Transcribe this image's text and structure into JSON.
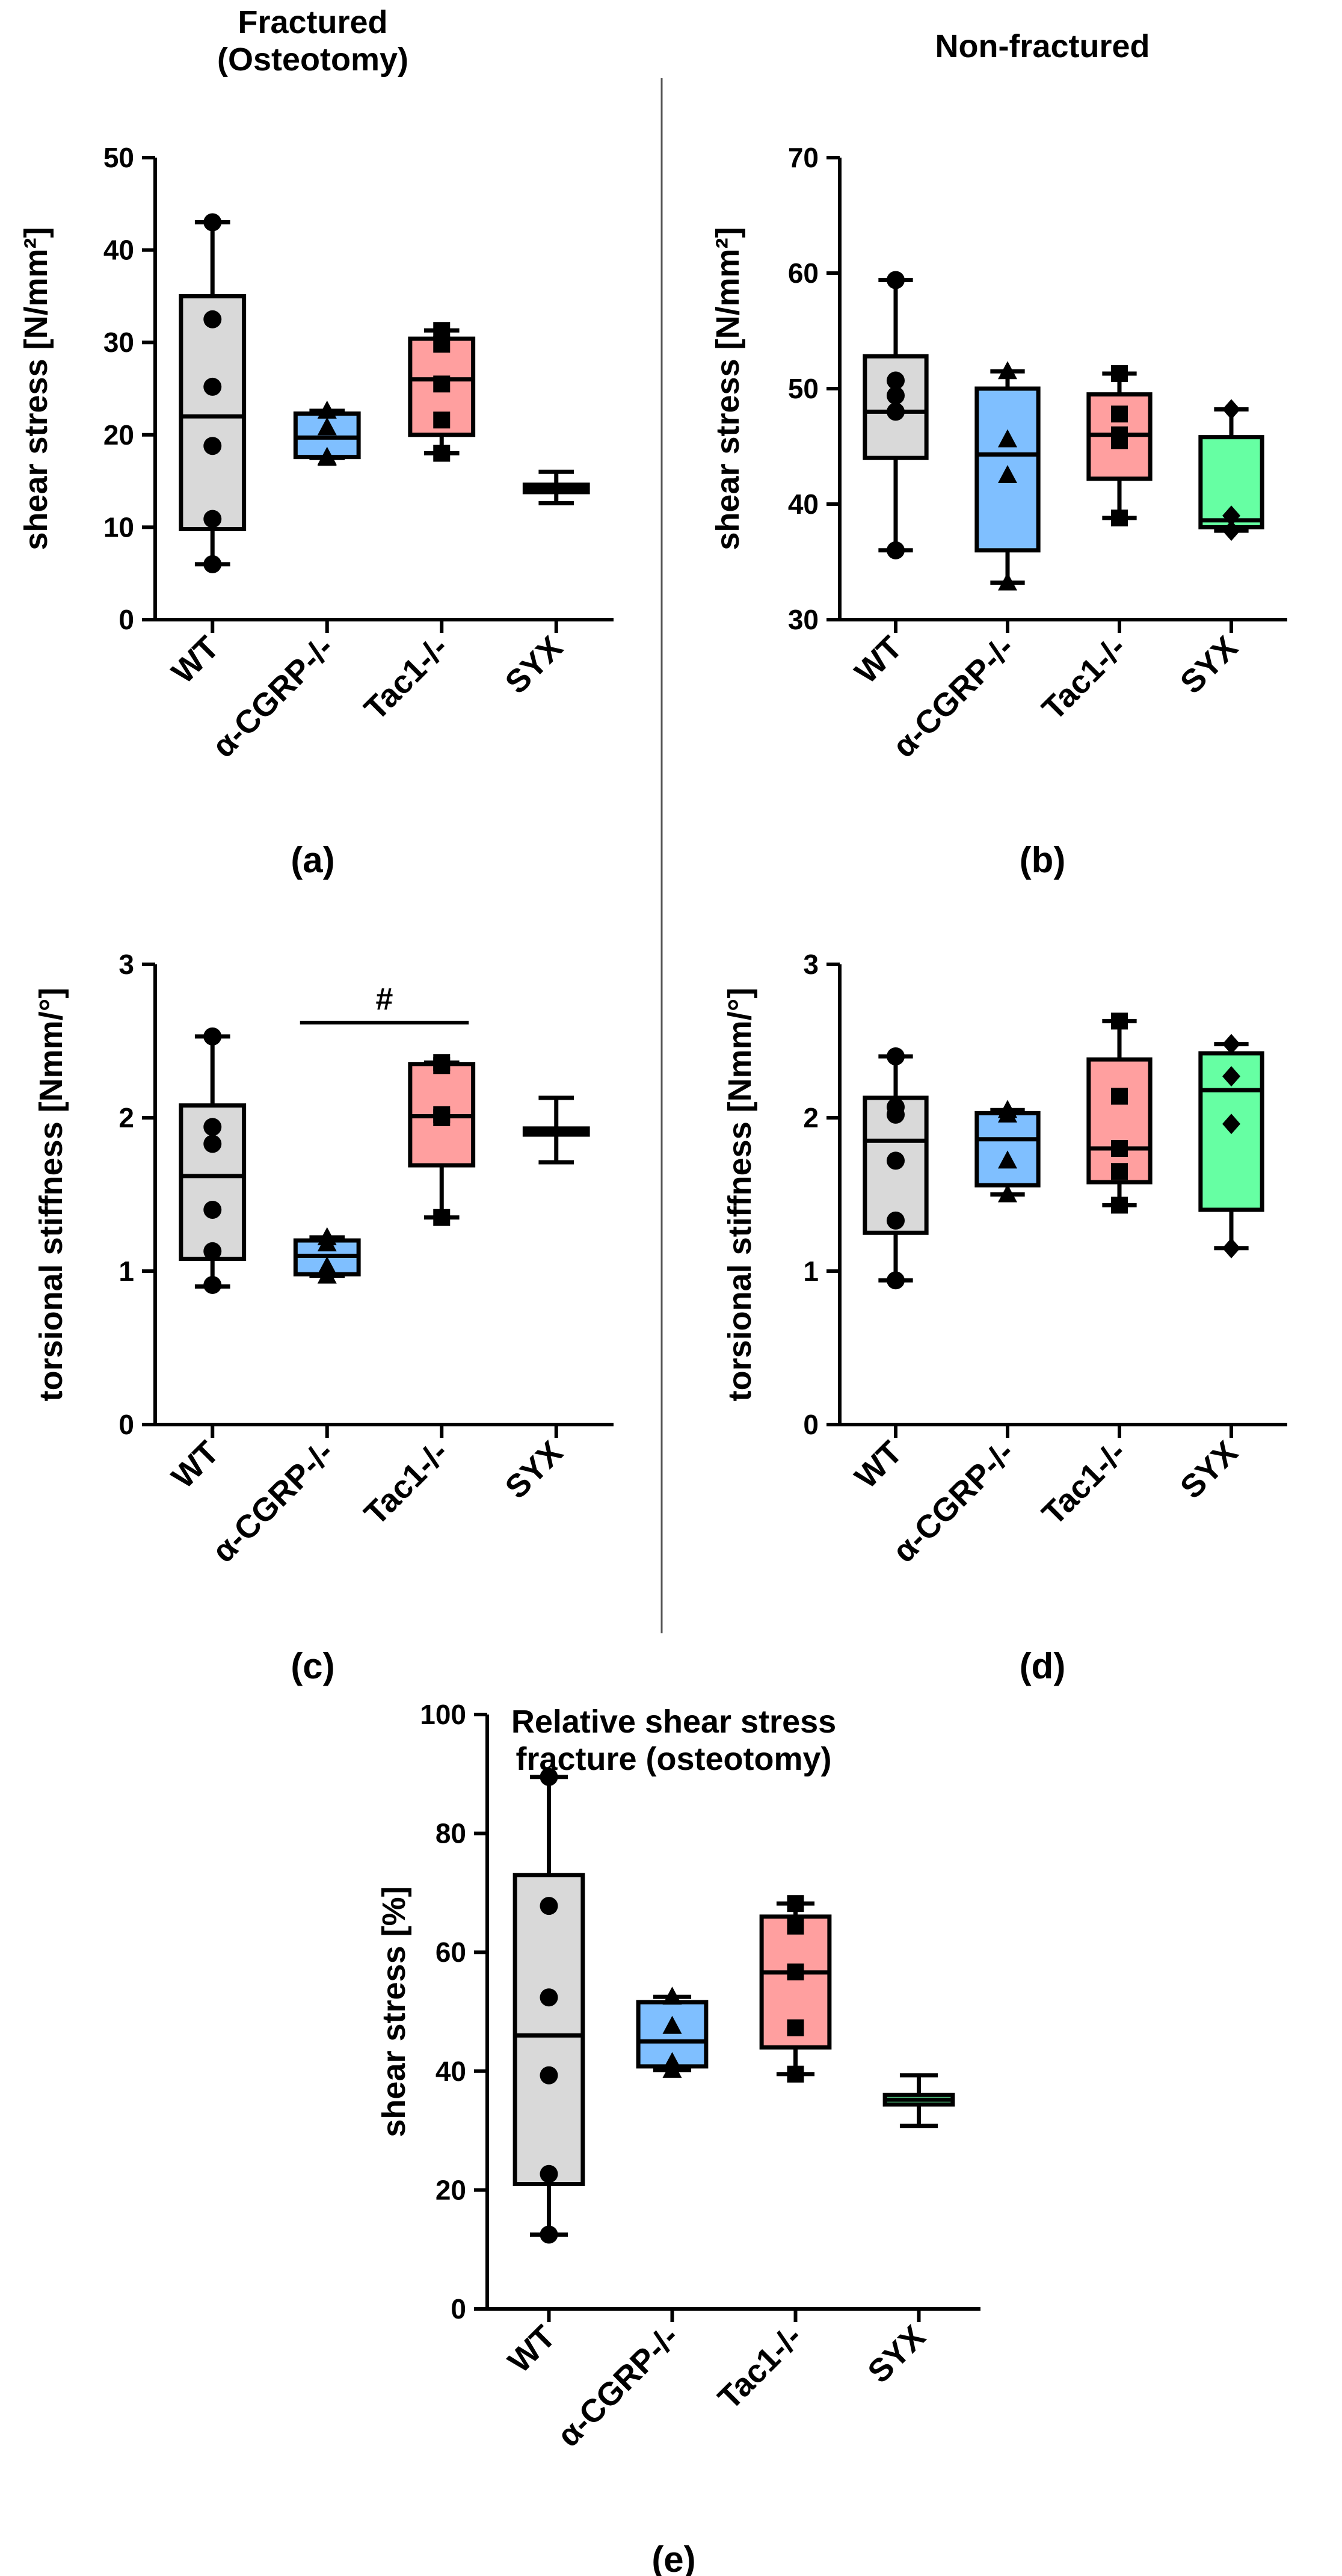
{
  "colors": {
    "WT": "#d9d9d9",
    "alpha-CGRP": "#7fbfff",
    "Tac1": "#ff9f9f",
    "SYX": "#66ffa3"
  },
  "chart_data": [
    {
      "id": "a",
      "type": "box",
      "title": "Fractured\n(Osteotomy)",
      "label": "(a)",
      "ylabel": "shear stress [N/mm²]",
      "ylim": [
        0,
        50
      ],
      "yticks": [
        0,
        10,
        20,
        30,
        40,
        50
      ],
      "categories": [
        "WT",
        "α-CGRP-/-",
        "Tac1-/-",
        "SYX"
      ],
      "boxes": [
        {
          "min": 6,
          "q1": 9.8,
          "median": 22,
          "q3": 35,
          "max": 43,
          "marker": "circle",
          "points": [
            43,
            32.5,
            25.2,
            18.8,
            10.9,
            6
          ]
        },
        {
          "min": 17.5,
          "q1": 17.6,
          "median": 19.7,
          "q3": 22.3,
          "max": 22.6,
          "marker": "triangle",
          "points": [
            22.6,
            20.8,
            17.6,
            17.5
          ]
        },
        {
          "min": 18,
          "q1": 20,
          "median": 26,
          "q3": 30.4,
          "max": 31.3,
          "marker": "square",
          "points": [
            31.3,
            29.8,
            25.5,
            21.6,
            18
          ]
        },
        {
          "min": 12.6,
          "q1": 13.8,
          "median": 14.2,
          "q3": 14.6,
          "max": 16,
          "marker": "none",
          "points": []
        }
      ],
      "annotations": []
    },
    {
      "id": "b",
      "type": "box",
      "title": "Non-fractured",
      "label": "(b)",
      "ylabel": "shear stress [N/mm²]",
      "ylim": [
        30,
        70
      ],
      "yticks": [
        30,
        40,
        50,
        60,
        70
      ],
      "categories": [
        "WT",
        "α-CGRP-/-",
        "Tac1-/-",
        "SYX"
      ],
      "boxes": [
        {
          "min": 36,
          "q1": 44,
          "median": 48,
          "q3": 52.8,
          "max": 59.4,
          "marker": "circle",
          "points": [
            59.4,
            50.7,
            49.4,
            48,
            36
          ]
        },
        {
          "min": 33.2,
          "q1": 36,
          "median": 44.3,
          "q3": 50,
          "max": 51.5,
          "marker": "triangle",
          "points": [
            51.5,
            45.6,
            42.5,
            33.2
          ]
        },
        {
          "min": 38.8,
          "q1": 42.2,
          "median": 46,
          "q3": 49.5,
          "max": 51.3,
          "marker": "square",
          "points": [
            51.3,
            47.8,
            46,
            45.5,
            38.8
          ]
        },
        {
          "min": 37.7,
          "q1": 38,
          "median": 38.6,
          "q3": 45.8,
          "max": 48.2,
          "marker": "diamond",
          "points": [
            48.2,
            39,
            37.7
          ]
        }
      ],
      "annotations": []
    },
    {
      "id": "c",
      "type": "box",
      "title": "",
      "label": "(c)",
      "ylabel": "torsional stiffness [Nmm/°]",
      "ylim": [
        0,
        3
      ],
      "yticks": [
        0,
        1,
        2,
        3
      ],
      "categories": [
        "WT",
        "α-CGRP-/-",
        "Tac1-/-",
        "SYX"
      ],
      "boxes": [
        {
          "min": 0.9,
          "q1": 1.08,
          "median": 1.62,
          "q3": 2.08,
          "max": 2.53,
          "marker": "circle",
          "points": [
            2.53,
            1.94,
            1.83,
            1.4,
            1.13,
            0.91
          ]
        },
        {
          "min": 0.97,
          "q1": 0.98,
          "median": 1.1,
          "q3": 1.2,
          "max": 1.22,
          "marker": "triangle",
          "points": [
            1.22,
            1.18,
            1.03,
            0.97
          ]
        },
        {
          "min": 1.35,
          "q1": 1.69,
          "median": 2.01,
          "q3": 2.35,
          "max": 2.36,
          "marker": "square",
          "points": [
            2.36,
            2.34,
            2.02,
            2.0,
            1.35
          ]
        },
        {
          "min": 1.71,
          "q1": 1.89,
          "median": 1.91,
          "q3": 1.93,
          "max": 2.13,
          "marker": "none",
          "points": []
        }
      ],
      "annotations": [
        {
          "text": "#",
          "from": 1,
          "to": 2,
          "y": 2.62
        }
      ]
    },
    {
      "id": "d",
      "type": "box",
      "title": "",
      "label": "(d)",
      "ylabel": "torsional stiffness [Nmm/°]",
      "ylim": [
        0,
        3
      ],
      "yticks": [
        0,
        1,
        2,
        3
      ],
      "categories": [
        "WT",
        "α-CGRP-/-",
        "Tac1-/-",
        "SYX"
      ],
      "boxes": [
        {
          "min": 0.94,
          "q1": 1.25,
          "median": 1.85,
          "q3": 2.13,
          "max": 2.4,
          "marker": "circle",
          "points": [
            2.4,
            2.07,
            2.02,
            1.72,
            1.33,
            0.94
          ]
        },
        {
          "min": 1.5,
          "q1": 1.56,
          "median": 1.86,
          "q3": 2.03,
          "max": 2.05,
          "marker": "triangle",
          "points": [
            2.05,
            2.02,
            1.72,
            1.5
          ]
        },
        {
          "min": 1.43,
          "q1": 1.58,
          "median": 1.8,
          "q3": 2.38,
          "max": 2.63,
          "marker": "square",
          "points": [
            2.63,
            2.14,
            1.8,
            1.65,
            1.43
          ]
        },
        {
          "min": 1.15,
          "q1": 1.4,
          "median": 2.18,
          "q3": 2.42,
          "max": 2.48,
          "marker": "diamond",
          "points": [
            2.48,
            2.27,
            1.96,
            1.15
          ]
        }
      ],
      "annotations": []
    },
    {
      "id": "e",
      "type": "box",
      "title": "Relative shear stress\nfracture (osteotomy)",
      "label": "(e)",
      "ylabel": "shear stress [%]",
      "ylim": [
        0,
        100
      ],
      "yticks": [
        0,
        20,
        40,
        60,
        80,
        100
      ],
      "categories": [
        "WT",
        "α-CGRP-/-",
        "Tac1-/-",
        "SYX"
      ],
      "boxes": [
        {
          "min": 12.5,
          "q1": 21,
          "median": 46,
          "q3": 73,
          "max": 89.5,
          "marker": "circle",
          "points": [
            89.5,
            67.8,
            52.4,
            39.3,
            22.7,
            12.5
          ]
        },
        {
          "min": 40.2,
          "q1": 40.8,
          "median": 45,
          "q3": 51.6,
          "max": 52.5,
          "marker": "triangle",
          "points": [
            52.5,
            47.6,
            41.5,
            40.2
          ]
        },
        {
          "min": 39.5,
          "q1": 44,
          "median": 56.6,
          "q3": 66,
          "max": 68.2,
          "marker": "square",
          "points": [
            68.2,
            64.4,
            56.7,
            47.3,
            39.5
          ]
        },
        {
          "min": 30.8,
          "q1": 34.4,
          "median": 35.2,
          "q3": 36,
          "max": 39.3,
          "marker": "none",
          "points": []
        }
      ],
      "annotations": []
    }
  ]
}
